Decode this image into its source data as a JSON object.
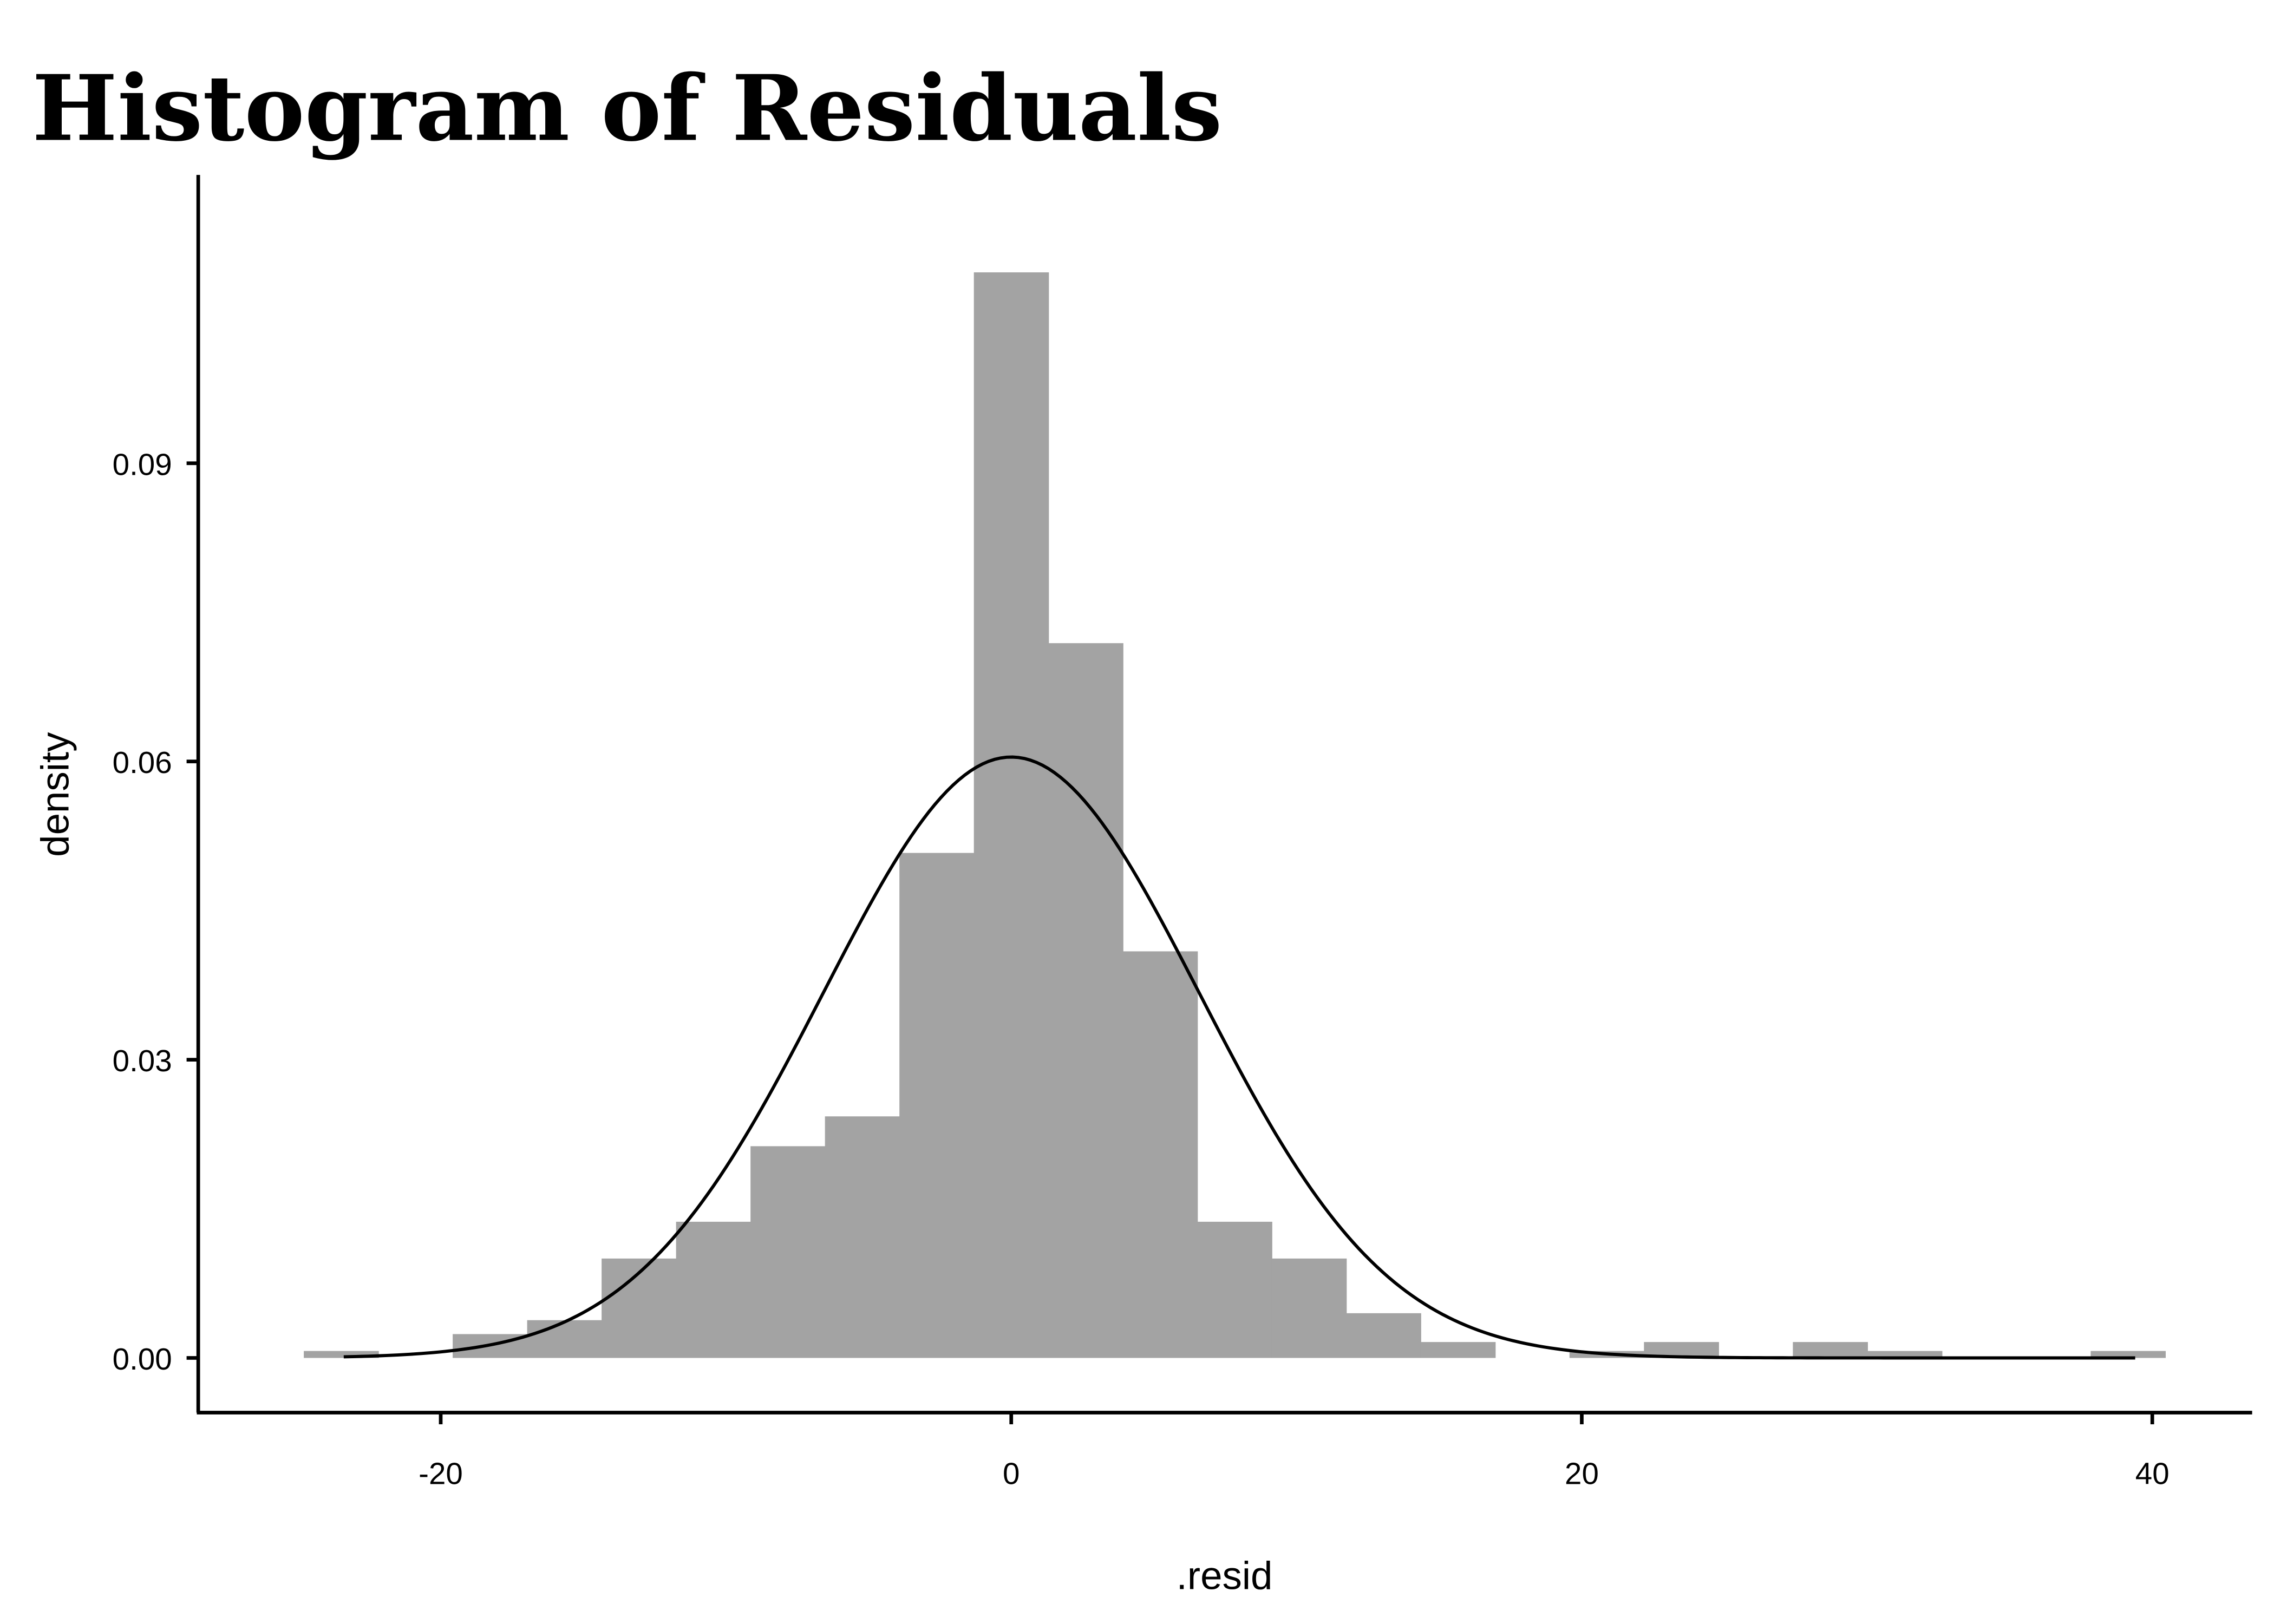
{
  "chart_data": {
    "type": "bar",
    "title": "Histogram of Residuals",
    "xlabel": ".resid",
    "ylabel": "density",
    "xlim": [
      -28.5,
      43.5
    ],
    "ylim": [
      -0.0055,
      0.119
    ],
    "xticks": [
      -20,
      0,
      20,
      40
    ],
    "xtick_labels": [
      "-20",
      "0",
      "20",
      "40"
    ],
    "yticks": [
      0,
      0.03,
      0.06,
      0.09
    ],
    "ytick_labels": [
      "0.00",
      "0.03",
      "0.06",
      "0.09"
    ],
    "grid": false,
    "bin_start": -24.8,
    "bin_width": 2.61,
    "values": [
      0.0007,
      0,
      0.0024,
      0.0038,
      0.01,
      0.0137,
      0.0213,
      0.0243,
      0.0508,
      0.1092,
      0.0719,
      0.0409,
      0.0137,
      0.01,
      0.0045,
      0.0016,
      0,
      0.0007,
      0.0016,
      0,
      0.0016,
      0.0007,
      0,
      0,
      0.0007
    ],
    "bar_color": "#a3a3a3",
    "normal_curve": {
      "mean": 0.0,
      "sd": 6.6,
      "x_range": [
        -23.4,
        39.4
      ],
      "color": "#000000"
    }
  }
}
